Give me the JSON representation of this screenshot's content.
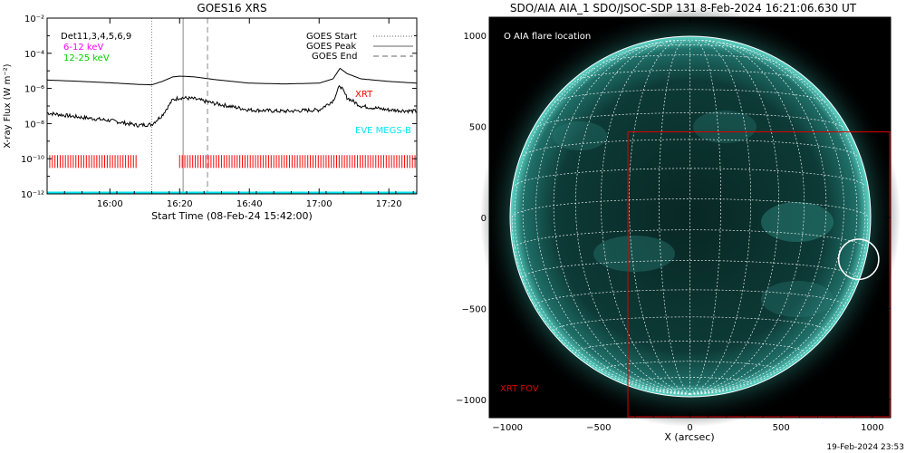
{
  "chart_data": [
    {
      "type": "line",
      "title": "GOES16 XRS",
      "xlabel": "Start Time (08-Feb-24 15:42:00)",
      "ylabel": "X-ray Flux (W m⁻²)",
      "y_scale": "log",
      "ylim": [
        1e-12,
        0.01
      ],
      "xlim": [
        "15:42",
        "17:28"
      ],
      "x_ticks": [
        "16:00",
        "16:20",
        "16:40",
        "17:00",
        "17:20"
      ],
      "y_ticks": [
        {
          "value": 1e-12,
          "label": "10⁻¹²"
        },
        {
          "value": 1e-10,
          "label": "10⁻¹⁰"
        },
        {
          "value": 1e-08,
          "label": "10⁻⁸"
        },
        {
          "value": 1e-06,
          "label": "10⁻⁶"
        },
        {
          "value": 0.0001,
          "label": "10⁻⁴"
        },
        {
          "value": 0.01,
          "label": "10⁻²"
        }
      ],
      "detectors_label": "Det11,3,4,5,6,9",
      "series": [
        {
          "name": "6-12 keV",
          "color": "#000000",
          "x": [
            "15:42",
            "15:50",
            "16:00",
            "16:08",
            "16:12",
            "16:15",
            "16:18",
            "16:20",
            "16:24",
            "16:30",
            "16:40",
            "16:50",
            "17:00",
            "17:04",
            "17:06",
            "17:08",
            "17:12",
            "17:20",
            "17:28"
          ],
          "values": [
            3e-06,
            2.6e-06,
            2.1e-06,
            1.7e-06,
            1.6e-06,
            2.5e-06,
            4.5e-06,
            5e-06,
            4.6e-06,
            3.2e-06,
            2e-06,
            1.8e-06,
            2e-06,
            3.5e-06,
            1.4e-05,
            7e-06,
            3.5e-06,
            2.5e-06,
            2e-06
          ]
        },
        {
          "name": "12-25 keV",
          "color": "#000000",
          "x": [
            "15:42",
            "15:50",
            "16:00",
            "16:08",
            "16:12",
            "16:15",
            "16:18",
            "16:20",
            "16:24",
            "16:30",
            "16:40",
            "16:50",
            "17:00",
            "17:04",
            "17:06",
            "17:08",
            "17:12",
            "17:20",
            "17:28"
          ],
          "values": [
            4e-08,
            2.5e-08,
            1.5e-08,
            8e-09,
            9e-09,
            3e-08,
            2.2e-07,
            3e-07,
            2.6e-07,
            1.4e-07,
            6e-08,
            5e-08,
            6e-08,
            2e-07,
            1.5e-06,
            3e-07,
            1e-07,
            6e-08,
            5e-08
          ]
        }
      ],
      "legend": {
        "placement": "top-right",
        "entries": [
          {
            "label": "GOES Start",
            "style": "dotted"
          },
          {
            "label": "GOES Peak",
            "style": "solid"
          },
          {
            "label": "GOES End",
            "style": "dashed"
          }
        ]
      },
      "markers": {
        "goes_start": "16:12",
        "goes_peak": "16:21",
        "goes_end": "16:28"
      },
      "energy_labels": [
        {
          "text": "6-12 keV",
          "color": "#ff00ff"
        },
        {
          "text": "12-25 keV",
          "color": "#00cc00"
        }
      ],
      "xrt_label": {
        "text": "XRT",
        "color": "#ff0000"
      },
      "xrt_coverage": [
        [
          "15:42",
          "16:08"
        ],
        [
          "16:20",
          "17:28"
        ]
      ],
      "eve_label": {
        "text": "EVE MEGS-B",
        "color": "#00e5ee"
      },
      "eve_level": 1e-12
    },
    {
      "type": "image",
      "title": "SDO/AIA AIA_1 SDO/JSOC-SDP 131  8-Feb-2024 16:21:06.630 UT",
      "xlabel": "X (arcsec)",
      "ylabel": "",
      "xlim": [
        -1100,
        1100
      ],
      "ylim": [
        -1100,
        1100
      ],
      "x_ticks": [
        -1000,
        -500,
        0,
        500,
        1000
      ],
      "y_ticks": [
        -1000,
        -500,
        0,
        500,
        1000
      ],
      "grid": true,
      "disk_radius_arcsec": 975,
      "colors": {
        "disk": "#0b3330",
        "limb": "#6fe8da",
        "grid": "#ffffff",
        "fov": "#dd0000"
      },
      "legend_text": "O AIA flare location",
      "flare_location": {
        "x": 925,
        "y": -230,
        "radius": 110
      },
      "xrt_fov": {
        "label": "XRT FOV",
        "x": [
          -340,
          1100
        ],
        "y": [
          -1100,
          470
        ]
      }
    }
  ],
  "footer": {
    "timestamp": "19-Feb-2024 23:53"
  }
}
